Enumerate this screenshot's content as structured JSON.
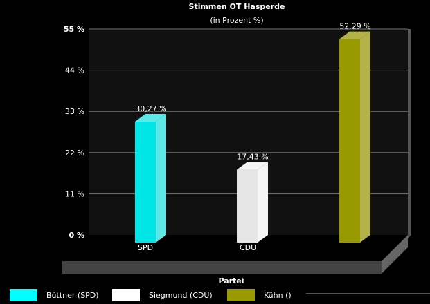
{
  "chart_data": {
    "type": "bar",
    "title": "Stimmen OT Hasperde",
    "subtitle": "(in Prozent %)",
    "xlabel": "Partei",
    "ylabel": "",
    "ylim": [
      0,
      55
    ],
    "yticks": [
      "0 %",
      "11 %",
      "22 %",
      "33 %",
      "44 %",
      "55 %"
    ],
    "ytick_values": [
      0,
      11,
      22,
      33,
      44,
      55
    ],
    "categories": [
      "SPD",
      "CDU",
      ""
    ],
    "values": [
      30.27,
      17.43,
      52.29
    ],
    "value_labels": [
      "30,27 %",
      "17,43 %",
      "52,29 %"
    ],
    "colors": [
      "#00e5e5",
      "#e6e6e6",
      "#999900"
    ],
    "side_colors": [
      "#5fe8e8",
      "#f5f5f5",
      "#b3b34a"
    ],
    "grid": true,
    "legend_position": "bottom",
    "legend": [
      {
        "label": "Büttner (SPD)",
        "color": "#00ffff"
      },
      {
        "label": "Siegmund (CDU)",
        "color": "#ffffff"
      },
      {
        "label": "Kühn ()",
        "color": "#999900"
      }
    ]
  }
}
